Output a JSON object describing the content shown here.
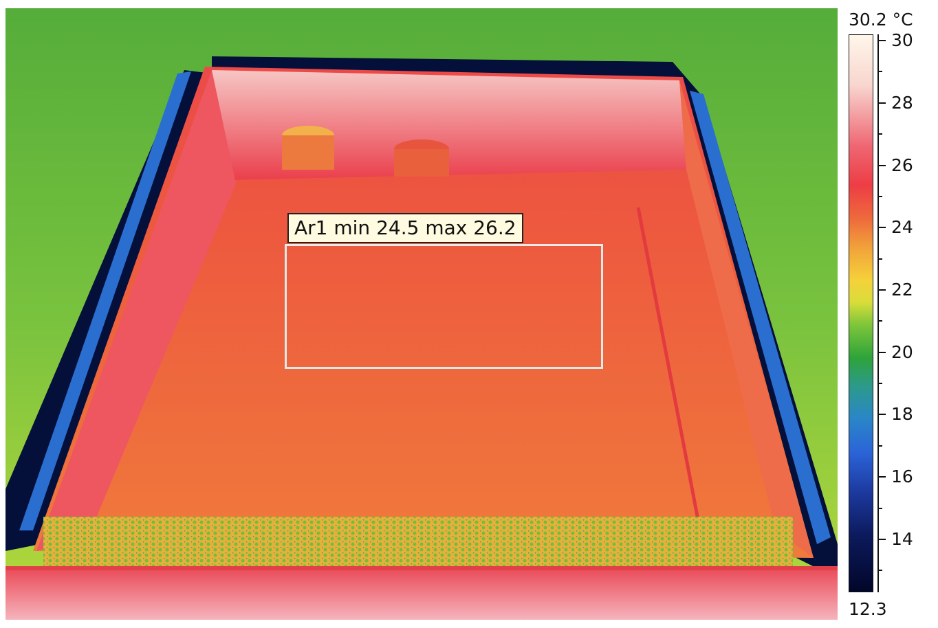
{
  "thermal_image": {
    "description_icon": "thermal-image-icon"
  },
  "roi": {
    "label": "Ar1 min 24.5 max 26.2"
  },
  "colorbar": {
    "max_label": "30.2 °C",
    "min_label": "12.3",
    "ticks": [
      "30",
      "28",
      "26",
      "24",
      "22",
      "20",
      "18",
      "16",
      "14"
    ]
  },
  "colors": {
    "hot": "#ed3d45",
    "warm": "#f1a03a",
    "mid": "#7fc63a",
    "cool": "#2a86c8",
    "cold": "#02062a"
  }
}
